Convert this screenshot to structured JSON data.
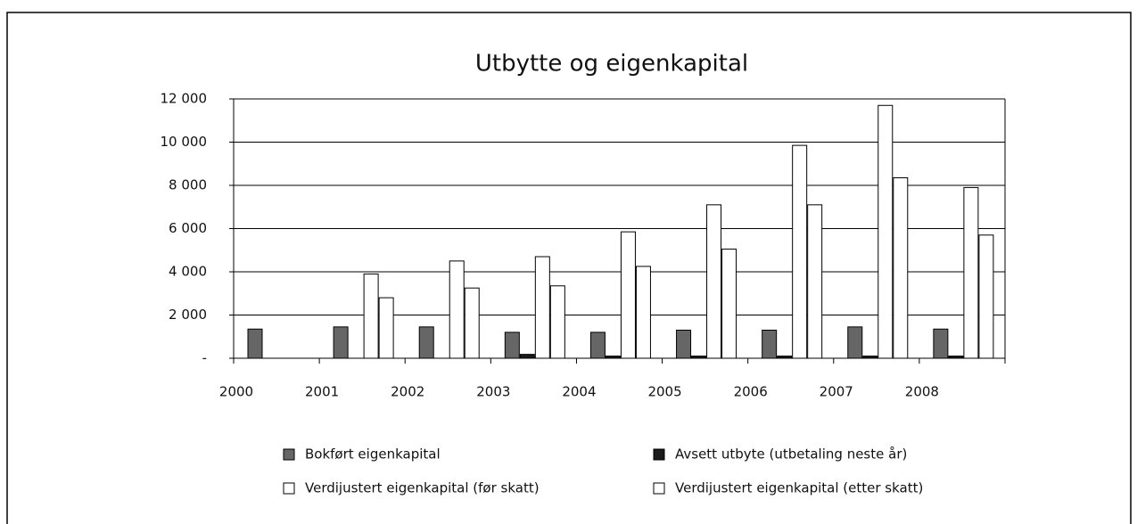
{
  "chart_data": {
    "type": "bar",
    "title": "Utbytte og eigenkapital",
    "categories": [
      "2000",
      "2001",
      "2002",
      "2003",
      "2004",
      "2005",
      "2006",
      "2007",
      "2008"
    ],
    "series": [
      {
        "name": "Bokført eigenkapital",
        "color": "#666666",
        "values": [
          1350,
          1450,
          1450,
          1200,
          1200,
          1300,
          1300,
          1450,
          1350
        ]
      },
      {
        "name": "Avsett utbyte (utbetaling neste år)",
        "color": "#1a1a1a",
        "values": [
          null,
          null,
          null,
          180,
          100,
          100,
          100,
          100,
          100
        ]
      },
      {
        "name": "Verdijustert eigenkapital (før skatt)",
        "color": "#ffffff",
        "values": [
          null,
          3900,
          4500,
          4700,
          5850,
          7100,
          9850,
          11700,
          7900
        ]
      },
      {
        "name": "Verdijustert eigenkapital (etter skatt)",
        "color": "#ffffff",
        "values": [
          null,
          2800,
          3250,
          3350,
          4250,
          5050,
          7100,
          8350,
          5700
        ]
      }
    ],
    "ylim": [
      0,
      12000
    ],
    "yticks": [
      {
        "value": 0,
        "label": "-"
      },
      {
        "value": 2000,
        "label": "2 000"
      },
      {
        "value": 4000,
        "label": "4 000"
      },
      {
        "value": 6000,
        "label": "6 000"
      },
      {
        "value": 8000,
        "label": "8 000"
      },
      {
        "value": 10000,
        "label": "10 000"
      },
      {
        "value": 12000,
        "label": "12 000"
      }
    ],
    "grid": true
  }
}
